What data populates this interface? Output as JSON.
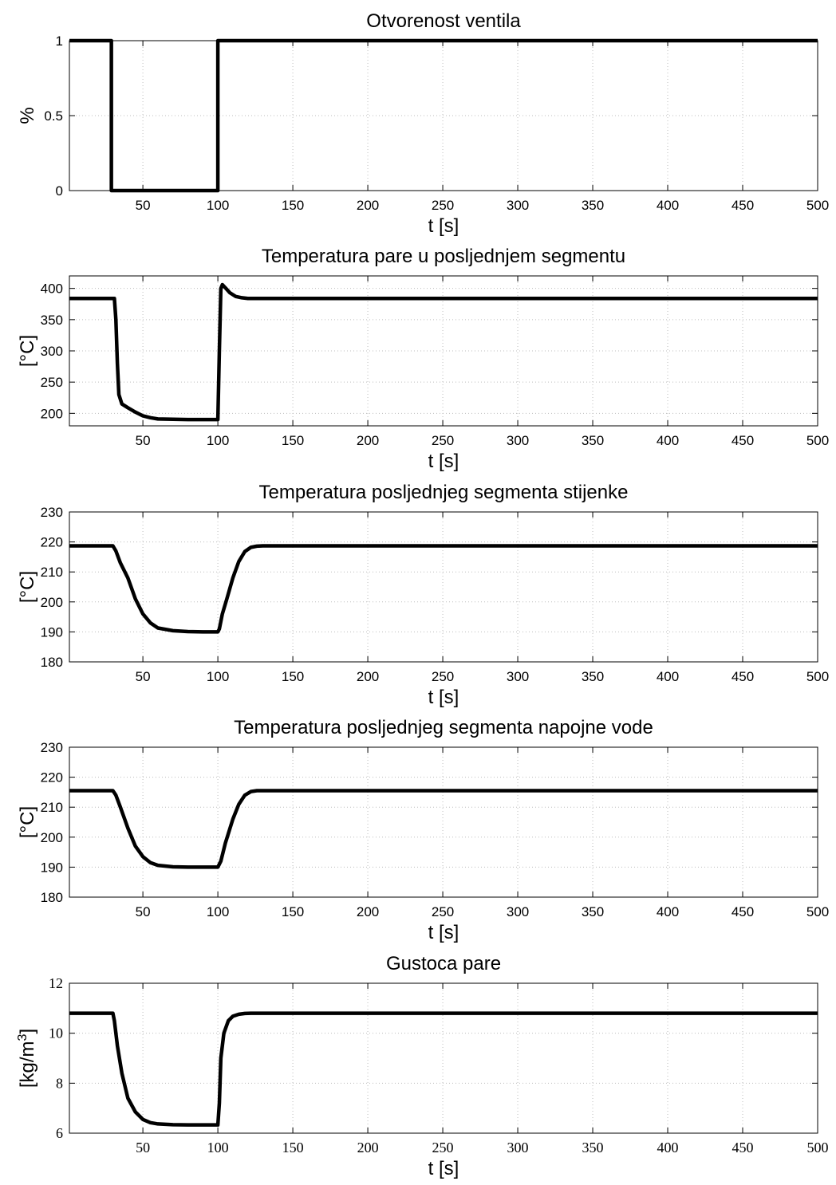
{
  "chart_data": [
    {
      "type": "line",
      "title": "Otvorenost ventila",
      "xlabel": "t [s]",
      "ylabel": "%",
      "xlim": [
        1,
        500
      ],
      "ylim": [
        0,
        1
      ],
      "xticks": [
        50,
        100,
        150,
        200,
        250,
        300,
        350,
        400,
        450,
        500
      ],
      "yticks": [
        0,
        0.5,
        1
      ],
      "grid": true,
      "tick_font": "sans",
      "series": [
        {
          "x": [
            1,
            29,
            29,
            100,
            100,
            500
          ],
          "y": [
            1,
            1,
            0,
            0,
            1,
            1
          ]
        }
      ]
    },
    {
      "type": "line",
      "title": "Temperatura pare u posljednjem segmentu",
      "xlabel": "t [s]",
      "ylabel": "[°C]",
      "xlim": [
        1,
        500
      ],
      "ylim": [
        180,
        420
      ],
      "xticks": [
        50,
        100,
        150,
        200,
        250,
        300,
        350,
        400,
        450,
        500
      ],
      "yticks": [
        200,
        250,
        300,
        350,
        400
      ],
      "grid": true,
      "tick_font": "sans",
      "series": [
        {
          "x": [
            1,
            31,
            32,
            33,
            34,
            36,
            40,
            45,
            50,
            55,
            60,
            70,
            80,
            90,
            100,
            101,
            102,
            103,
            105,
            108,
            112,
            116,
            120,
            500
          ],
          "y": [
            384,
            384,
            350,
            280,
            230,
            215,
            209,
            202,
            196,
            193,
            191,
            190.5,
            190,
            190,
            190,
            300,
            400,
            406,
            401,
            393,
            387,
            385,
            384,
            384
          ]
        }
      ]
    },
    {
      "type": "line",
      "title": "Temperatura posljednjeg segmenta stijenke",
      "xlabel": "t [s]",
      "ylabel": "[°C]",
      "xlim": [
        1,
        500
      ],
      "ylim": [
        180,
        230
      ],
      "xticks": [
        50,
        100,
        150,
        200,
        250,
        300,
        350,
        400,
        450,
        500
      ],
      "yticks": [
        180,
        190,
        200,
        210,
        220,
        230
      ],
      "grid": true,
      "tick_font": "sans",
      "series": [
        {
          "x": [
            1,
            30,
            32,
            35,
            40,
            45,
            50,
            55,
            60,
            70,
            80,
            90,
            100,
            101,
            103,
            106,
            110,
            114,
            118,
            122,
            126,
            130,
            500
          ],
          "y": [
            218.7,
            218.7,
            217,
            213,
            208,
            201,
            196,
            193,
            191.3,
            190.4,
            190.1,
            190,
            190,
            191,
            196,
            201,
            208,
            213.5,
            216.8,
            218.2,
            218.6,
            218.7,
            218.7
          ]
        }
      ]
    },
    {
      "type": "line",
      "title": "Temperatura posljednjeg segmenta napojne vode",
      "xlabel": "t [s]",
      "ylabel": "[°C]",
      "xlim": [
        1,
        500
      ],
      "ylim": [
        180,
        230
      ],
      "xticks": [
        50,
        100,
        150,
        200,
        250,
        300,
        350,
        400,
        450,
        500
      ],
      "yticks": [
        180,
        190,
        200,
        210,
        220,
        230
      ],
      "grid": true,
      "tick_font": "sans",
      "series": [
        {
          "x": [
            1,
            30,
            32,
            35,
            40,
            45,
            50,
            55,
            60,
            70,
            80,
            90,
            100,
            102,
            105,
            110,
            114,
            118,
            122,
            126,
            500
          ],
          "y": [
            215.5,
            215.5,
            214,
            210,
            203,
            197,
            193.5,
            191.5,
            190.6,
            190.1,
            190,
            190,
            190,
            192,
            198,
            206,
            211,
            214,
            215.2,
            215.5,
            215.5
          ]
        }
      ]
    },
    {
      "type": "line",
      "title": "Gustoca pare",
      "xlabel": "t [s]",
      "ylabel_base": "[kg/m",
      "ylabel_sup": "3",
      "ylabel_end": "]",
      "xlim": [
        1,
        500
      ],
      "ylim": [
        6,
        12
      ],
      "xticks": [
        50,
        100,
        150,
        200,
        250,
        300,
        350,
        400,
        450,
        500
      ],
      "yticks": [
        6,
        8,
        10,
        12
      ],
      "grid": true,
      "tick_font": "serif",
      "series": [
        {
          "x": [
            1,
            30,
            31,
            33,
            36,
            40,
            45,
            50,
            55,
            60,
            70,
            80,
            90,
            100,
            101,
            102,
            104,
            107,
            110,
            114,
            118,
            122,
            500
          ],
          "y": [
            10.8,
            10.8,
            10.5,
            9.5,
            8.4,
            7.4,
            6.85,
            6.55,
            6.42,
            6.37,
            6.34,
            6.33,
            6.33,
            6.33,
            7.2,
            9.0,
            10.0,
            10.5,
            10.68,
            10.76,
            10.79,
            10.8,
            10.8
          ]
        }
      ]
    }
  ]
}
